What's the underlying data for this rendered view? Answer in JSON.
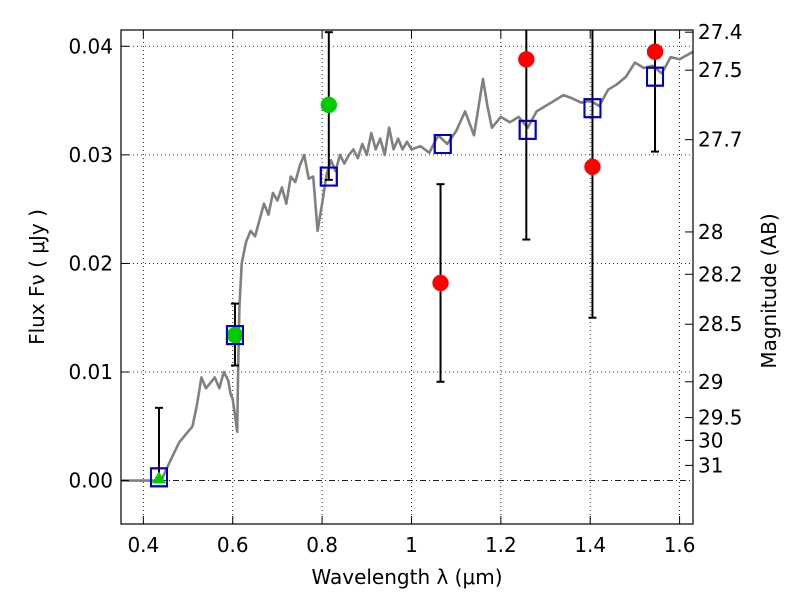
{
  "chart_data": {
    "type": "scatter",
    "xlabel": "Wavelength  λ (μm)",
    "ylabel": "Flux  Fν  ( μJy )",
    "y2label": "Magnitude (AB)",
    "xlim": [
      0.35,
      1.63
    ],
    "ylim": [
      -0.004,
      0.0415
    ],
    "grid": true,
    "grid_style": "dotted",
    "legend": "none",
    "x_ticks": [
      {
        "value": 0.4,
        "label": "0.4"
      },
      {
        "value": 0.6,
        "label": "0.6"
      },
      {
        "value": 0.8,
        "label": "0.8"
      },
      {
        "value": 1.0,
        "label": "1"
      },
      {
        "value": 1.2,
        "label": "1.2"
      },
      {
        "value": 1.4,
        "label": "1.4"
      },
      {
        "value": 1.6,
        "label": "1.6"
      }
    ],
    "y_ticks": [
      {
        "value": 0.0,
        "label": "0.00"
      },
      {
        "value": 0.01,
        "label": "0.01"
      },
      {
        "value": 0.02,
        "label": "0.02"
      },
      {
        "value": 0.03,
        "label": "0.03"
      },
      {
        "value": 0.04,
        "label": "0.04"
      }
    ],
    "magnitude_ticks": [
      {
        "value": 0.0413,
        "label": "27.4"
      },
      {
        "value": 0.0378,
        "label": "27.5"
      },
      {
        "value": 0.0314,
        "label": "27.7"
      },
      {
        "value": 0.0229,
        "label": "28"
      },
      {
        "value": 0.019,
        "label": "28.2"
      },
      {
        "value": 0.0144,
        "label": "28.5"
      },
      {
        "value": 0.0091,
        "label": "29"
      },
      {
        "value": 0.0058,
        "label": "29.5"
      },
      {
        "value": 0.0037,
        "label": "30"
      },
      {
        "value": 0.0014,
        "label": "31"
      }
    ],
    "series": [
      {
        "kind": "line",
        "color": "#808080",
        "x": [
          0.35,
          0.44,
          0.46,
          0.48,
          0.49,
          0.5,
          0.51,
          0.52,
          0.53,
          0.54,
          0.55,
          0.56,
          0.57,
          0.58,
          0.59,
          0.595,
          0.6,
          0.605,
          0.61,
          0.612,
          0.615,
          0.62,
          0.63,
          0.64,
          0.65,
          0.66,
          0.67,
          0.68,
          0.69,
          0.7,
          0.71,
          0.72,
          0.73,
          0.74,
          0.75,
          0.76,
          0.77,
          0.78,
          0.79,
          0.8,
          0.81,
          0.82,
          0.83,
          0.84,
          0.85,
          0.86,
          0.87,
          0.88,
          0.89,
          0.9,
          0.91,
          0.92,
          0.93,
          0.94,
          0.95,
          0.96,
          0.97,
          0.98,
          0.99,
          1.0,
          1.02,
          1.04,
          1.06,
          1.08,
          1.1,
          1.12,
          1.14,
          1.16,
          1.17,
          1.18,
          1.2,
          1.22,
          1.24,
          1.26,
          1.28,
          1.3,
          1.32,
          1.34,
          1.36,
          1.38,
          1.4,
          1.42,
          1.44,
          1.46,
          1.48,
          1.5,
          1.52,
          1.54,
          1.56,
          1.58,
          1.6,
          1.63
        ],
        "y": [
          0.0,
          0.0,
          0.0018,
          0.0035,
          0.004,
          0.0045,
          0.005,
          0.007,
          0.0095,
          0.0085,
          0.009,
          0.0095,
          0.0085,
          0.01,
          0.0092,
          0.008,
          0.0075,
          0.006,
          0.0045,
          0.01,
          0.016,
          0.02,
          0.022,
          0.023,
          0.0225,
          0.024,
          0.0255,
          0.0245,
          0.0265,
          0.0258,
          0.027,
          0.0255,
          0.028,
          0.0275,
          0.029,
          0.03,
          0.0278,
          0.028,
          0.023,
          0.0255,
          0.0282,
          0.0295,
          0.0285,
          0.03,
          0.0292,
          0.03,
          0.0305,
          0.0297,
          0.031,
          0.03,
          0.032,
          0.0305,
          0.0315,
          0.03,
          0.0325,
          0.0305,
          0.0315,
          0.0305,
          0.0312,
          0.0305,
          0.0308,
          0.0302,
          0.0318,
          0.031,
          0.0322,
          0.034,
          0.0318,
          0.037,
          0.0345,
          0.0325,
          0.0335,
          0.033,
          0.0335,
          0.0325,
          0.034,
          0.0345,
          0.035,
          0.0355,
          0.0352,
          0.0348,
          0.035,
          0.0345,
          0.036,
          0.0365,
          0.0372,
          0.0385,
          0.038,
          0.0382,
          0.0375,
          0.039,
          0.0388,
          0.0395
        ]
      },
      {
        "kind": "points",
        "marker": "open-square",
        "color": "#0000cc",
        "x": [
          0.435,
          0.605,
          0.815,
          1.07,
          1.26,
          1.405,
          1.545
        ],
        "y": [
          0.0003,
          0.0134,
          0.028,
          0.031,
          0.0323,
          0.0343,
          0.0372
        ]
      },
      {
        "kind": "points",
        "marker": "circle",
        "color": "#00cc00",
        "x": [
          0.605,
          0.815
        ],
        "y": [
          0.0134,
          0.0346
        ],
        "yerr_low": [
          0.0028,
          0.0069
        ],
        "yerr_high": [
          0.0029,
          0.0067
        ]
      },
      {
        "kind": "points",
        "marker": "triangle",
        "color": "#00cc00",
        "x": [
          0.435
        ],
        "y": [
          0.0002
        ],
        "yerr_low": [
          0.0
        ],
        "yerr_high": [
          0.0065
        ]
      },
      {
        "kind": "points",
        "marker": "circle",
        "color": "#ff0000",
        "x": [
          1.065,
          1.257,
          1.405,
          1.545
        ],
        "y": [
          0.0182,
          0.0388,
          0.0289,
          0.0395
        ],
        "yerr_low": [
          0.0091,
          0.0166,
          0.0139,
          0.0092
        ],
        "yerr_high": [
          0.0091,
          0.004,
          0.0139,
          0.004
        ]
      }
    ]
  }
}
